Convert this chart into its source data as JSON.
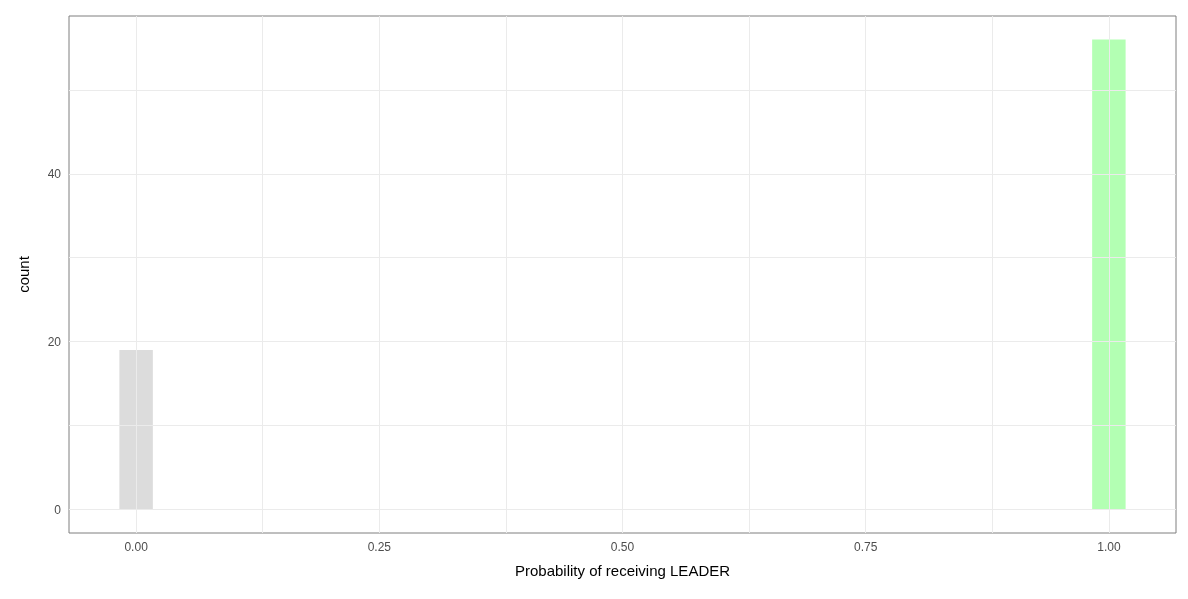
{
  "chart_data": {
    "type": "histogram",
    "xlabel": "Probability of receiving LEADER",
    "ylabel": "count",
    "bins": [
      -0.0172,
      0.0172,
      0.0517,
      0.0862,
      0.1207,
      0.1552,
      0.1897,
      0.2241,
      0.2586,
      0.2931,
      0.3276,
      0.3621,
      0.3966,
      0.431,
      0.4655,
      0.5,
      0.5345,
      0.569,
      0.6034,
      0.6379,
      0.6724,
      0.7069,
      0.7414,
      0.7759,
      0.8103,
      0.8448,
      0.8793,
      0.9138,
      0.9483,
      0.9828,
      1.0172
    ],
    "values": [
      19,
      0,
      0,
      0,
      0,
      0,
      0,
      0,
      0,
      0,
      0,
      0,
      0,
      0,
      0,
      0,
      0,
      0,
      0,
      0,
      0,
      0,
      0,
      0,
      0,
      0,
      0,
      0,
      0,
      56
    ],
    "colors": [
      "#dcdcdc",
      "#dcdcdc",
      "#dcdcdc",
      "#dcdcdc",
      "#dcdcdc",
      "#dcdcdc",
      "#dcdcdc",
      "#dcdcdc",
      "#dcdcdc",
      "#dcdcdc",
      "#dcdcdc",
      "#dcdcdc",
      "#dcdcdc",
      "#dcdcdc",
      "#dcdcdc",
      "#dcdcdc",
      "#dcdcdc",
      "#dcdcdc",
      "#dcdcdc",
      "#dcdcdc",
      "#dcdcdc",
      "#dcdcdc",
      "#dcdcdc",
      "#dcdcdc",
      "#dcdcdc",
      "#dcdcdc",
      "#dcdcdc",
      "#dcdcdc",
      "#dcdcdc",
      "#b3ffb3"
    ],
    "xlim": [
      -0.069,
      1.069
    ],
    "xticks": [
      {
        "value": 0,
        "label": "0.00"
      },
      {
        "value": 0.25,
        "label": "0.25"
      },
      {
        "value": 0.5,
        "label": "0.50"
      },
      {
        "value": 0.75,
        "label": "0.75"
      },
      {
        "value": 1,
        "label": "1.00"
      }
    ],
    "ylim": [
      -2.8,
      58.8
    ],
    "yticks": [
      0,
      20,
      40
    ],
    "grid": true
  }
}
